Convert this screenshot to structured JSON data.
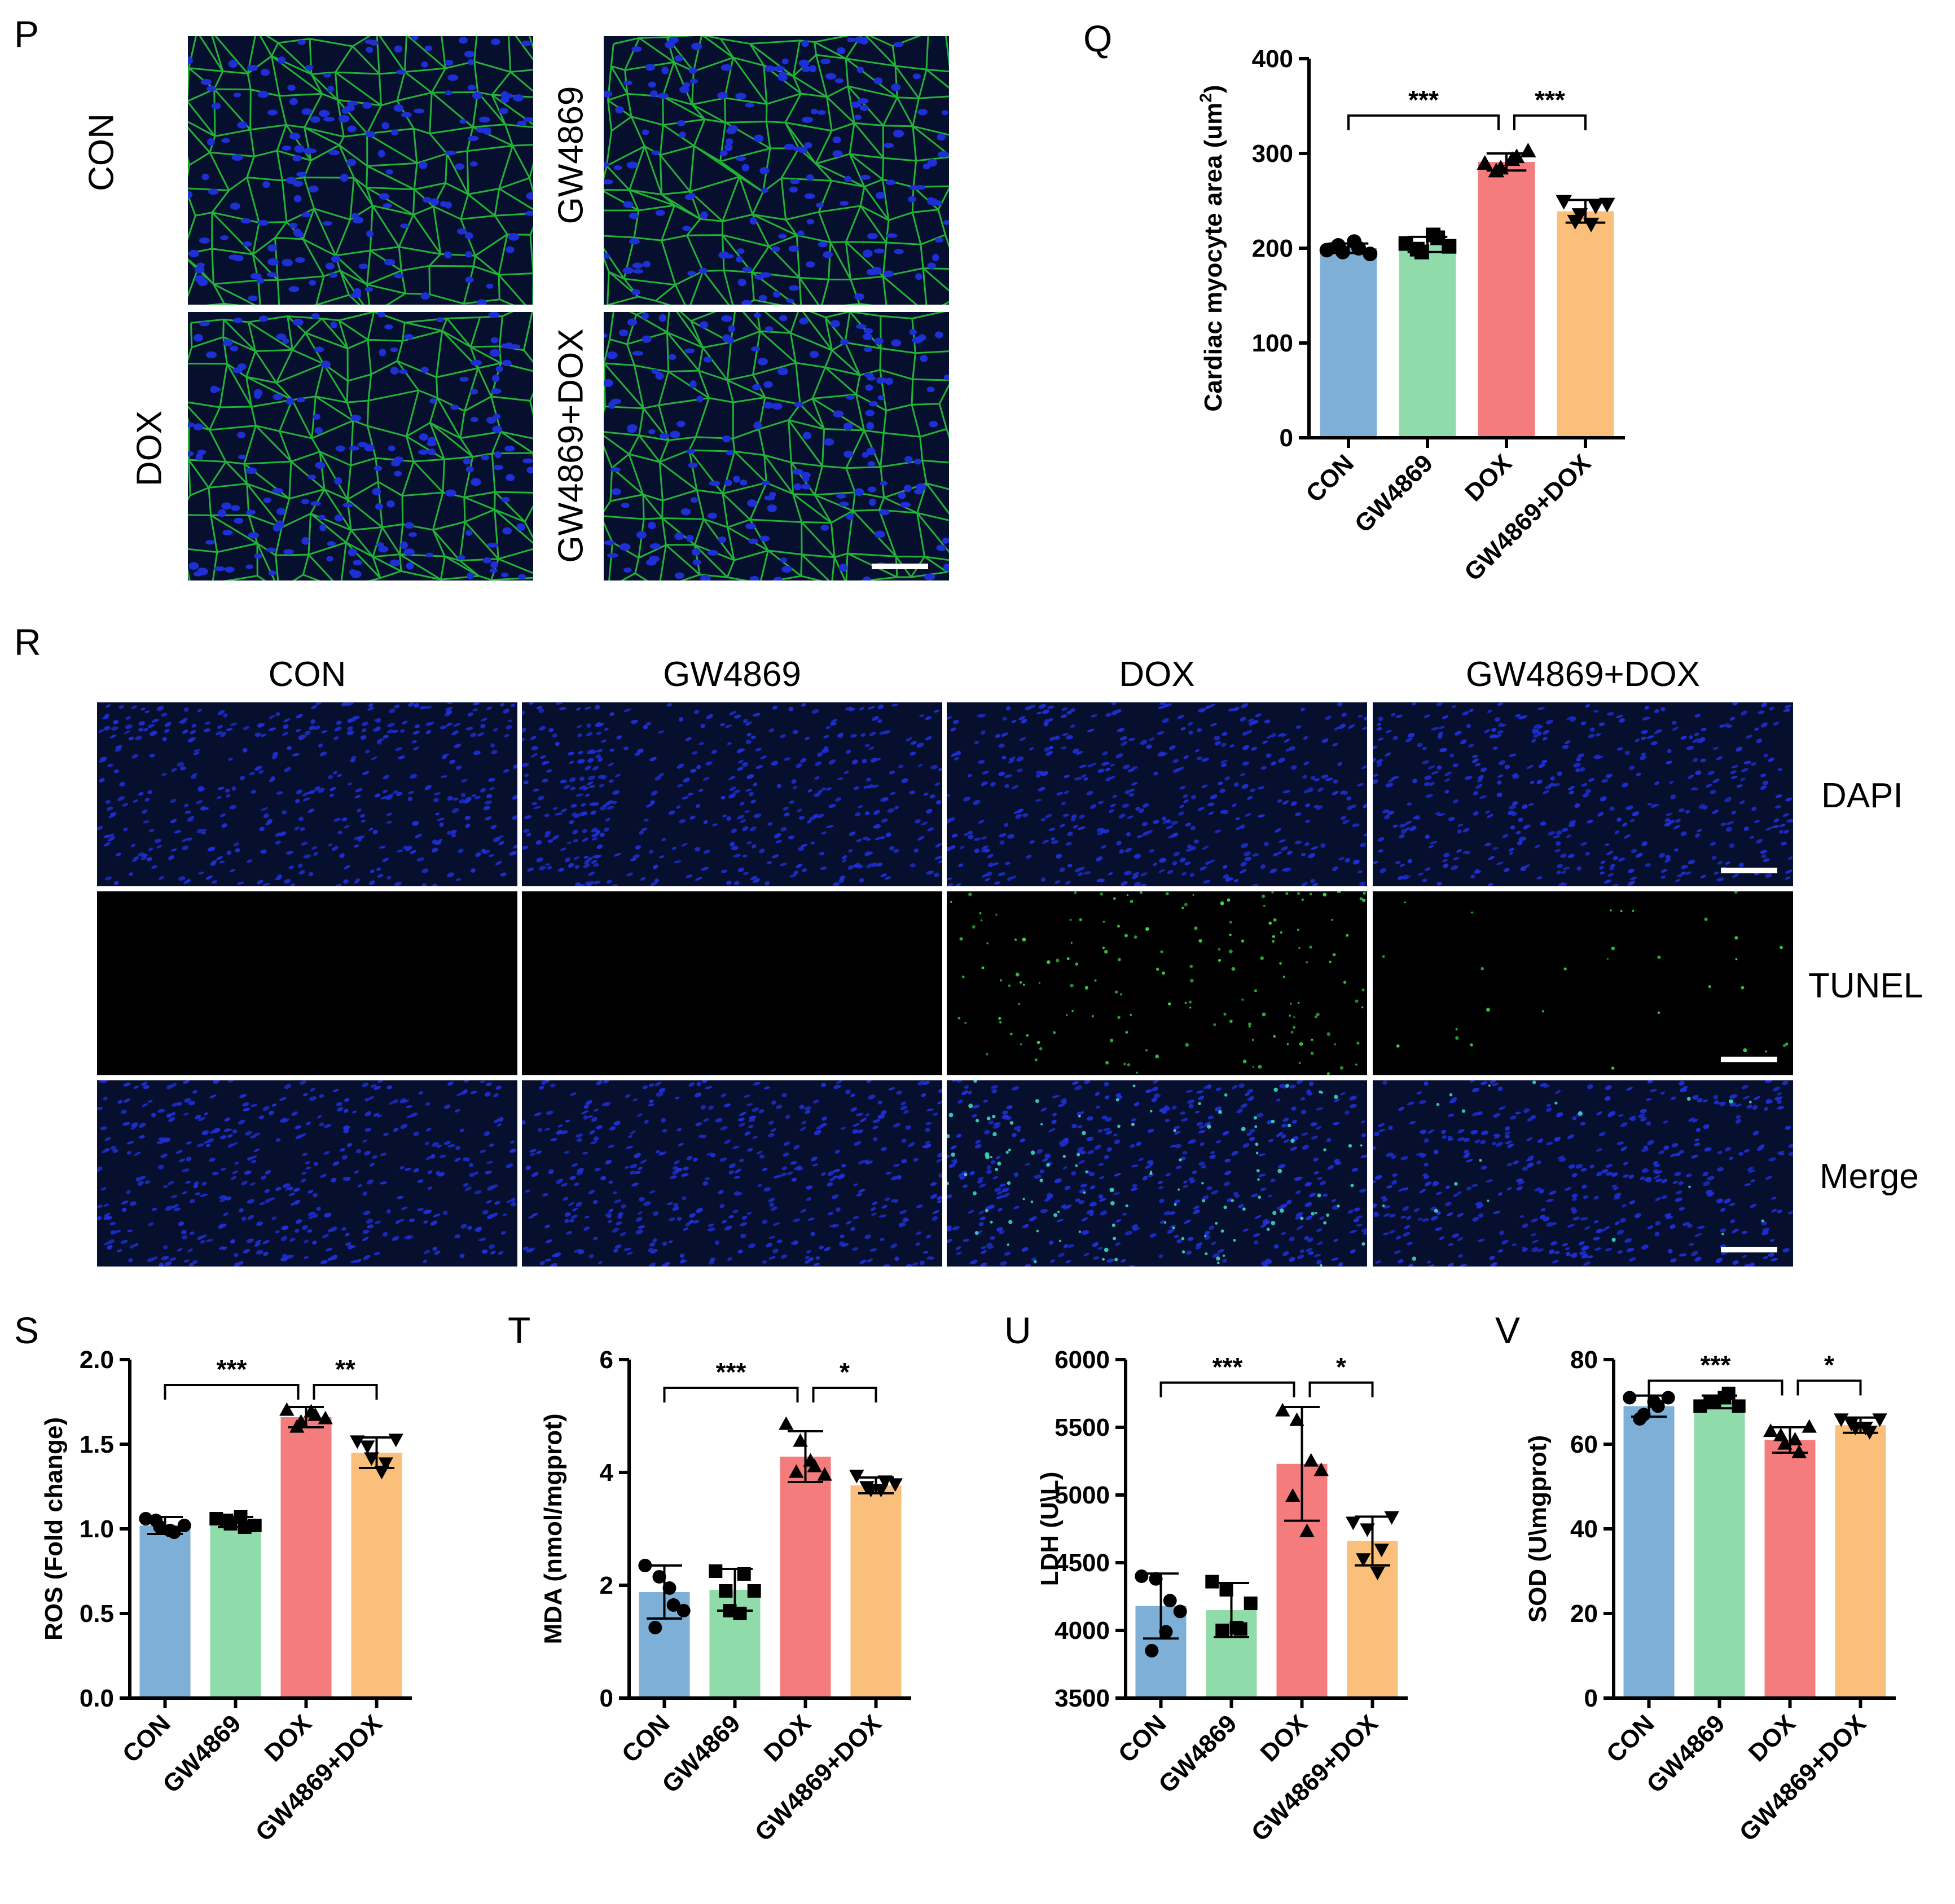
{
  "panels": {
    "P": {
      "letter": "P",
      "labels": [
        "CON",
        "GW4869",
        "DOX",
        "GW4869+DOX"
      ]
    },
    "Q": {
      "letter": "Q"
    },
    "R": {
      "letter": "R",
      "columns": [
        "CON",
        "GW4869",
        "DOX",
        "GW4869+DOX"
      ],
      "rows": [
        "DAPI",
        "TUNEL",
        "Merge"
      ]
    },
    "S": {
      "letter": "S"
    },
    "T": {
      "letter": "T"
    },
    "U": {
      "letter": "U"
    },
    "V": {
      "letter": "V"
    }
  },
  "colors": {
    "CON": "#7eafd6",
    "GW4869": "#8fdcaa",
    "DOX": "#f47c7c",
    "GW4869+DOX": "#fbbf7c",
    "nuclei": "#1f2fd6",
    "membrane": "#27c43a",
    "tunel": "#3ad64a"
  },
  "chart_data": [
    {
      "id": "Q",
      "type": "bar",
      "categories": [
        "CON",
        "GW4869",
        "DOX",
        "GW4869+DOX"
      ],
      "ylabel": "Cardiac myocyte area (um",
      "ylabel_sup": "2",
      "ylabel_end": ")",
      "ylim": [
        0,
        400
      ],
      "yticks": [
        0,
        100,
        200,
        300,
        400
      ],
      "ytick_labels": [
        "0",
        "100",
        "200",
        "300",
        "400"
      ],
      "values": [
        200,
        204,
        291,
        239
      ],
      "sd": [
        5,
        8,
        9,
        12
      ],
      "points": [
        [
          198,
          196,
          200,
          203,
          207,
          194
        ],
        [
          205,
          196,
          211,
          199,
          214,
          202
        ],
        [
          289,
          284,
          296,
          281,
          293,
          302
        ],
        [
          250,
          236,
          245,
          229,
          226,
          247
        ]
      ],
      "markers": [
        "circle",
        "square",
        "triangle-up",
        "triangle-down"
      ],
      "significance": [
        {
          "from": 0,
          "to": 2,
          "label": "***",
          "y": 340
        },
        {
          "from": 2,
          "to": 3,
          "label": "***",
          "y": 340
        }
      ]
    },
    {
      "id": "S",
      "type": "bar",
      "categories": [
        "CON",
        "GW4869",
        "DOX",
        "GW4869+DOX"
      ],
      "ylabel": "ROS (Fold change)",
      "ylim": [
        0,
        2.0
      ],
      "yticks": [
        0,
        0.5,
        1.0,
        1.5,
        2.0
      ],
      "ytick_labels": [
        "0.0",
        "0.5",
        "1.0",
        "1.5",
        "2.0"
      ],
      "values": [
        1.02,
        1.04,
        1.66,
        1.45
      ],
      "sd": [
        0.05,
        0.03,
        0.06,
        0.09
      ],
      "points": [
        [
          1.06,
          1.01,
          0.98,
          1.05,
          0.99,
          1.02
        ],
        [
          1.06,
          1.03,
          1.01,
          1.05,
          1.07,
          1.02
        ],
        [
          1.7,
          1.63,
          1.67,
          1.6,
          1.69,
          1.65
        ],
        [
          1.52,
          1.42,
          1.39,
          1.49,
          1.34,
          1.53
        ]
      ],
      "markers": [
        "circle",
        "square",
        "triangle-up",
        "triangle-down"
      ],
      "significance": [
        {
          "from": 0,
          "to": 2,
          "label": "***",
          "y": 1.85
        },
        {
          "from": 2,
          "to": 3,
          "label": "**",
          "y": 1.85
        }
      ]
    },
    {
      "id": "T",
      "type": "bar",
      "categories": [
        "CON",
        "GW4869",
        "DOX",
        "GW4869+DOX"
      ],
      "ylabel": "MDA (nmol/mgprot)",
      "ylim": [
        0,
        6
      ],
      "yticks": [
        0,
        2,
        4,
        6
      ],
      "ytick_labels": [
        "0",
        "2",
        "4",
        "6"
      ],
      "values": [
        1.88,
        1.92,
        4.28,
        3.77
      ],
      "sd": [
        0.47,
        0.37,
        0.45,
        0.14
      ],
      "points": [
        [
          2.35,
          2.15,
          1.65,
          1.25,
          1.95,
          1.55
        ],
        [
          2.25,
          1.55,
          2.2,
          1.9,
          1.5,
          1.9
        ],
        [
          4.85,
          4.55,
          4.1,
          4.0,
          4.2,
          3.95
        ],
        [
          3.95,
          3.7,
          3.85,
          3.75,
          3.7,
          3.8
        ]
      ],
      "markers": [
        "circle",
        "square",
        "triangle-up",
        "triangle-down"
      ],
      "significance": [
        {
          "from": 0,
          "to": 2,
          "label": "***",
          "y": 5.5
        },
        {
          "from": 2,
          "to": 3,
          "label": "*",
          "y": 5.5
        }
      ]
    },
    {
      "id": "U",
      "type": "bar",
      "categories": [
        "CON",
        "GW4869",
        "DOX",
        "GW4869+DOX"
      ],
      "ylabel": "LDH (U\\L)",
      "ylim": [
        3500,
        6000
      ],
      "yticks": [
        3500,
        4000,
        4500,
        5000,
        5500,
        6000
      ],
      "ytick_labels": [
        "3500",
        "4000",
        "4500",
        "5000",
        "5500",
        "6000"
      ],
      "values": [
        4180,
        4150,
        5230,
        4660
      ],
      "sd": [
        240,
        200,
        420,
        180
      ],
      "points": [
        [
          4400,
          4380,
          4220,
          3850,
          3990,
          4140
        ],
        [
          4360,
          4300,
          4010,
          4000,
          4020,
          4200
        ],
        [
          5620,
          5550,
          5250,
          4990,
          4730,
          5180
        ],
        [
          4800,
          4750,
          4600,
          4530,
          4430,
          4840
        ]
      ],
      "markers": [
        "circle",
        "square",
        "triangle-up",
        "triangle-down"
      ],
      "significance": [
        {
          "from": 0,
          "to": 2,
          "label": "***",
          "y": 5830
        },
        {
          "from": 2,
          "to": 3,
          "label": "*",
          "y": 5830
        }
      ]
    },
    {
      "id": "V",
      "type": "bar",
      "categories": [
        "CON",
        "GW4869",
        "DOX",
        "GW4869+DOX"
      ],
      "ylabel": "SOD (U\\mgprot)",
      "ylim": [
        0,
        80
      ],
      "yticks": [
        0,
        20,
        40,
        60,
        80
      ],
      "ytick_labels": [
        "0",
        "20",
        "40",
        "60",
        "80"
      ],
      "values": [
        69,
        70,
        61,
        64.5
      ],
      "sd": [
        2.5,
        1.5,
        3,
        1.8
      ],
      "points": [
        [
          71,
          67,
          69,
          66,
          70,
          71
        ],
        [
          69,
          70,
          72,
          70,
          71,
          69
        ],
        [
          63,
          60,
          58,
          62,
          61,
          64
        ],
        [
          66,
          64,
          63,
          65,
          64,
          66
        ]
      ],
      "markers": [
        "circle",
        "square",
        "triangle-up",
        "triangle-down"
      ],
      "significance": [
        {
          "from": 0,
          "to": 2,
          "label": "***",
          "y": 75
        },
        {
          "from": 2,
          "to": 3,
          "label": "*",
          "y": 75
        }
      ]
    }
  ]
}
